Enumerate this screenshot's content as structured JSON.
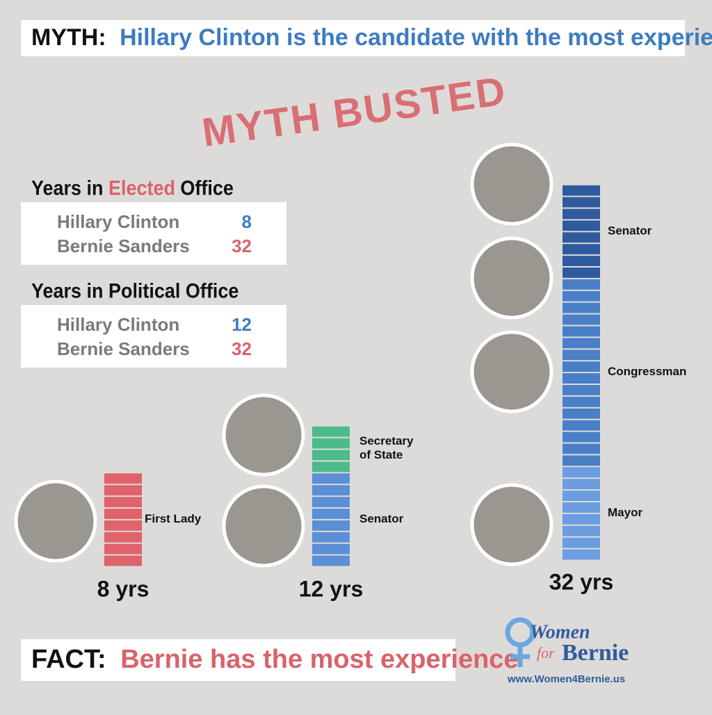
{
  "header": {
    "lead": "MYTH:",
    "text": "Hillary Clinton is the candidate with the most experience"
  },
  "stamp": "MYTH BUSTED",
  "tables": [
    {
      "heading": [
        "Years in ",
        "Elected",
        " Office"
      ],
      "rows": [
        {
          "name": "Hillary Clinton",
          "value": "8"
        },
        {
          "name": "Bernie Sanders",
          "value": "32"
        }
      ]
    },
    {
      "heading": [
        "Years in Political Office"
      ],
      "rows": [
        {
          "name": "Hillary Clinton",
          "value": "12"
        },
        {
          "name": "Bernie Sanders",
          "value": "32"
        }
      ]
    }
  ],
  "chart_data": {
    "type": "stacked-blocks",
    "stacks": [
      {
        "total_label": "8 yrs",
        "segments": [
          {
            "label": "First Lady",
            "years": 8,
            "color": "#e0626a"
          }
        ]
      },
      {
        "total_label": "12 yrs",
        "segments": [
          {
            "label": "Senator",
            "years": 8,
            "color": "#5b8fd6"
          },
          {
            "label": "Secretary of State",
            "years": 4,
            "color": "#4dba8b"
          }
        ]
      },
      {
        "total_label": "32 yrs",
        "segments": [
          {
            "label": "Mayor",
            "years": 8,
            "color": "#6a9ee0"
          },
          {
            "label": "Congressman",
            "years": 16,
            "color": "#4a7fc8"
          },
          {
            "label": "Senator",
            "years": 8,
            "color": "#2f5b9e"
          }
        ]
      }
    ]
  },
  "footer": {
    "lead": "FACT:",
    "text": "Bernie has the most experience"
  },
  "logo": {
    "line1": "Women",
    "line2": "for",
    "line3": "Bernie",
    "url": "www.Women4Bernie.us"
  }
}
